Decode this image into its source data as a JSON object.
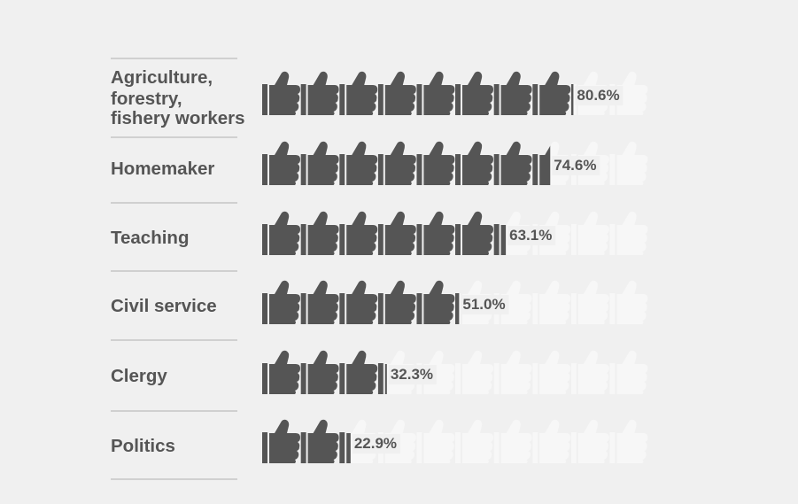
{
  "chart_data": {
    "type": "bar",
    "categories": [
      "Agriculture, forestry, fishery workers",
      "Homemaker",
      "Teaching",
      "Civil service",
      "Clergy",
      "Politics"
    ],
    "category_lines": [
      [
        "Agriculture,",
        "forestry,",
        "fishery workers"
      ],
      [
        "Homemaker"
      ],
      [
        "Teaching"
      ],
      [
        "Civil service"
      ],
      [
        "Clergy"
      ],
      [
        "Politics"
      ]
    ],
    "values": [
      80.6,
      74.6,
      63.1,
      51.0,
      32.3,
      22.9
    ],
    "value_labels": [
      "80.6%",
      "74.6%",
      "63.1%",
      "51.0%",
      "32.3%",
      "22.9%"
    ],
    "ylim": [
      0,
      100
    ],
    "icons_per_row": 10,
    "icon": "thumbs-up-icon",
    "colors": {
      "filled": "#555555",
      "empty": "#f7f7f7",
      "text": "#555555",
      "divider": "#bdbdbd",
      "background": "#f0f0f0"
    }
  }
}
